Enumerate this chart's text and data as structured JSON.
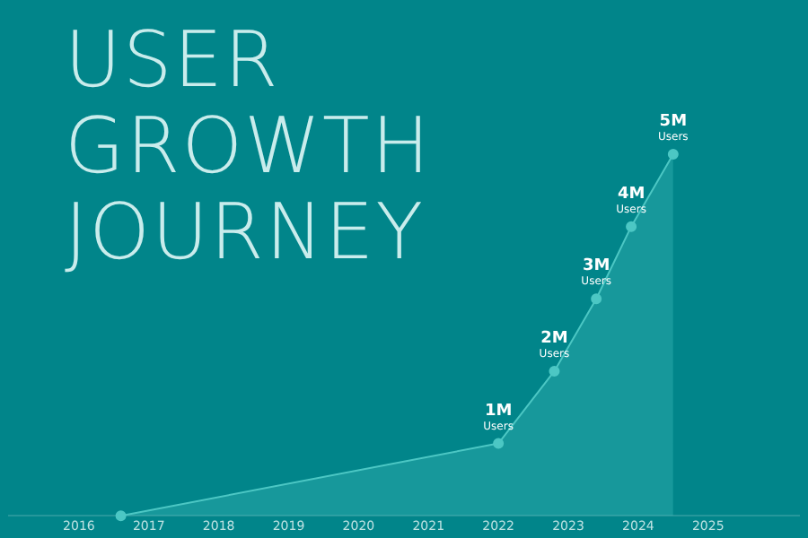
{
  "chart_data": {
    "type": "area",
    "title": "USER GROWTH JOURNEY",
    "x": [
      2016.6,
      2022,
      2022.8,
      2023.4,
      2023.9,
      2024.5
    ],
    "series": [
      {
        "color": "#4cc7c4",
        "values": [
          0,
          1,
          2,
          3,
          4,
          5
        ],
        "value_labels": [
          null,
          "1M\nUsers",
          "2M\nUsers",
          "3M\nUsers",
          "4M\nUsers",
          "5M\nUsers"
        ]
      }
    ],
    "xlim": [
      2015,
      2026.3
    ],
    "xticks": [
      2016,
      2017,
      2018,
      2019,
      2020,
      2021,
      2022,
      2023,
      2024,
      2025
    ],
    "tick_labels": "x",
    "grid": false,
    "legend": false,
    "marker": "circle",
    "line_style": "solid"
  }
}
